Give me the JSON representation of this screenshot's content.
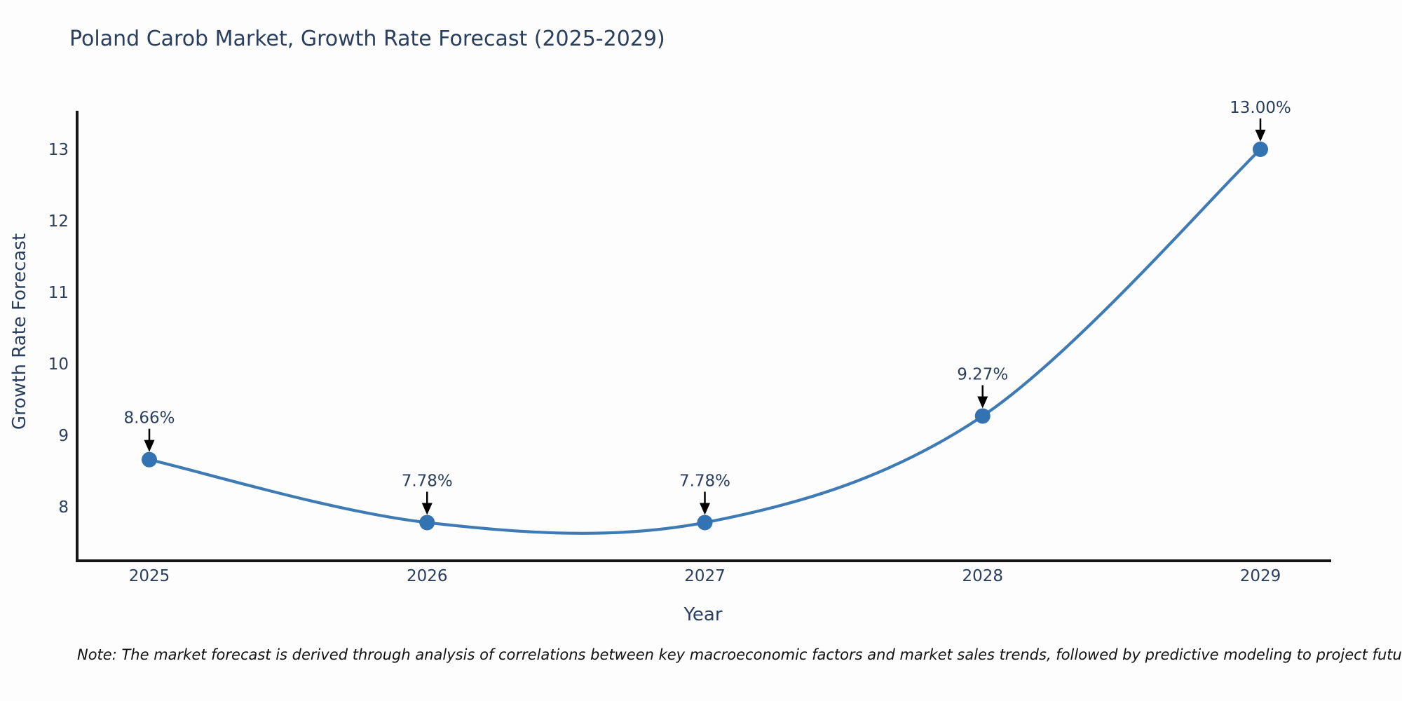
{
  "figure": {
    "note": "Note: The market forecast is derived through analysis of correlations between key macroeconomic factors and market sales trends, followed by predictive modeling to project future sales"
  },
  "chart_data": {
    "type": "line",
    "line_shape": "spline",
    "title": "Poland Carob Market, Growth Rate Forecast (2025-2029)",
    "xlabel": "Year",
    "ylabel": "Growth Rate Forecast",
    "categories": [
      2025,
      2026,
      2027,
      2028,
      2029
    ],
    "values": [
      8.66,
      7.78,
      7.78,
      9.27,
      13.0
    ],
    "point_labels": [
      "8.66%",
      "7.78%",
      "7.78%",
      "9.27%",
      "13.00%"
    ],
    "y_ticks": [
      8,
      9,
      10,
      11,
      12,
      13
    ],
    "ylim": [
      7.25,
      13.5
    ],
    "xlim": [
      2024.74,
      2029.25
    ],
    "grid": false,
    "legend": false,
    "annotations_style": "value label above each point with downward black arrow",
    "colors": {
      "line": "#3e7ab4",
      "marker": "#3473b2",
      "axis": "#151515",
      "text": "#2a3f5f",
      "arrow": "#000000",
      "background": "#fdfdfd"
    }
  }
}
